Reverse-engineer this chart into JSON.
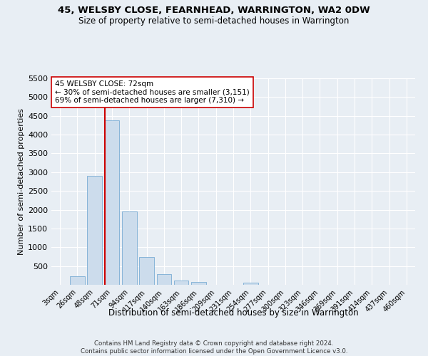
{
  "title": "45, WELSBY CLOSE, FEARNHEAD, WARRINGTON, WA2 0DW",
  "subtitle": "Size of property relative to semi-detached houses in Warrington",
  "xlabel": "Distribution of semi-detached houses by size in Warrington",
  "ylabel": "Number of semi-detached properties",
  "bar_color": "#ccdcec",
  "bar_edge_color": "#7aadd4",
  "background_color": "#e8eef4",
  "grid_color": "#ffffff",
  "categories": [
    "3sqm",
    "26sqm",
    "48sqm",
    "71sqm",
    "94sqm",
    "117sqm",
    "140sqm",
    "163sqm",
    "186sqm",
    "209sqm",
    "231sqm",
    "254sqm",
    "277sqm",
    "300sqm",
    "323sqm",
    "346sqm",
    "369sqm",
    "391sqm",
    "414sqm",
    "437sqm",
    "460sqm"
  ],
  "values": [
    0,
    230,
    2900,
    4380,
    1950,
    740,
    290,
    120,
    70,
    0,
    0,
    60,
    0,
    0,
    0,
    0,
    0,
    0,
    0,
    0,
    0
  ],
  "property_label": "45 WELSBY CLOSE: 72sqm",
  "pct_smaller": 30,
  "count_smaller": 3151,
  "pct_larger": 69,
  "count_larger": 7310,
  "vline_index": 3,
  "ylim": [
    0,
    5500
  ],
  "yticks": [
    0,
    500,
    1000,
    1500,
    2000,
    2500,
    3000,
    3500,
    4000,
    4500,
    5000,
    5500
  ],
  "annotation_box_color": "#ffffff",
  "annotation_box_edge": "#cc0000",
  "vline_color": "#cc0000",
  "footer_line1": "Contains HM Land Registry data © Crown copyright and database right 2024.",
  "footer_line2": "Contains public sector information licensed under the Open Government Licence v3.0."
}
